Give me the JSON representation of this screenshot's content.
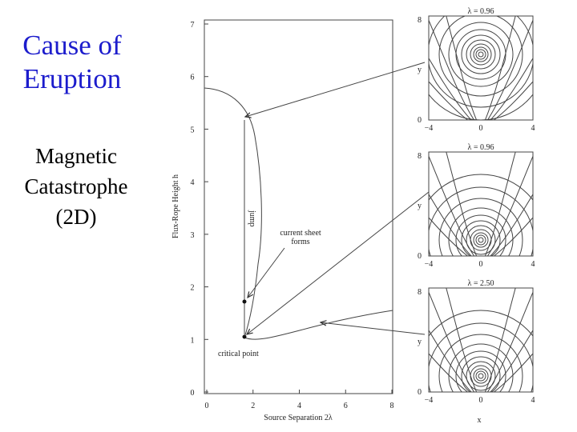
{
  "title": "Cause of Eruption",
  "subtitle": "Magnetic Catastrophe (2D)",
  "figure": {
    "x_label": "Source Separation 2λ",
    "y_label": "Flux-Rope Height h",
    "x_ticks": [
      "0",
      "2",
      "4",
      "6",
      "8"
    ],
    "y_ticks": [
      "0",
      "1",
      "2",
      "3",
      "4",
      "5",
      "6",
      "7"
    ],
    "annotations": {
      "jump": "jump",
      "current_sheet": "current sheet forms",
      "critical_point": "critical point"
    },
    "panels": [
      {
        "label": "λ = 0.96",
        "y_top": "8",
        "y_axis": "y",
        "y_bottom": "0",
        "x_ticks": [
          "−4",
          "0",
          "4"
        ]
      },
      {
        "label": "λ = 0.96",
        "y_top": "8",
        "y_axis": "y",
        "y_bottom": "0",
        "x_ticks": [
          "−4",
          "0",
          "4"
        ]
      },
      {
        "label": "λ = 2.50",
        "y_top": "8",
        "y_axis": "y",
        "y_bottom": "0",
        "x_ticks": [
          "−4",
          "0",
          "4"
        ]
      }
    ],
    "panel_x_label": "x"
  }
}
